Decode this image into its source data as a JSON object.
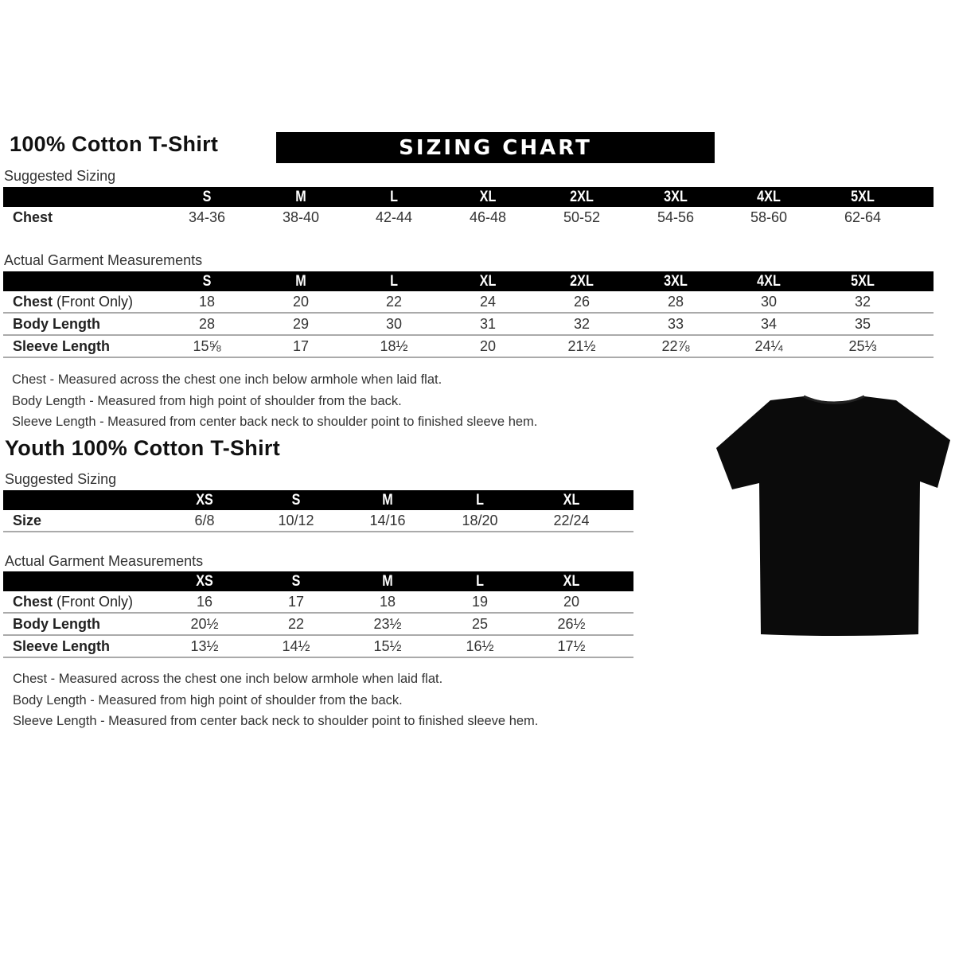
{
  "adult": {
    "title": "100% Cotton T-Shirt",
    "banner": "SIZING CHART",
    "suggested_label": "Suggested Sizing",
    "sizes": [
      "S",
      "M",
      "L",
      "XL",
      "2XL",
      "3XL",
      "4XL",
      "5XL"
    ],
    "suggested_rows": [
      {
        "label": "Chest",
        "label_light": "",
        "values": [
          "34-36",
          "38-40",
          "42-44",
          "46-48",
          "50-52",
          "54-56",
          "58-60",
          "62-64"
        ]
      }
    ],
    "actual_label": "Actual Garment Measurements",
    "actual_rows": [
      {
        "label": "Chest",
        "label_light": " (Front Only)",
        "values": [
          "18",
          "20",
          "22",
          "24",
          "26",
          "28",
          "30",
          "32"
        ]
      },
      {
        "label": "Body Length",
        "label_light": "",
        "values": [
          "28",
          "29",
          "30",
          "31",
          "32",
          "33",
          "34",
          "35"
        ]
      },
      {
        "label": "Sleeve Length",
        "label_light": "",
        "values": [
          "15⅝",
          "17",
          "18½",
          "20",
          "21½",
          "22⅞",
          "24¼",
          "25⅓"
        ]
      }
    ],
    "notes": [
      "Chest - Measured across the chest one inch below armhole when laid flat.",
      "Body Length - Measured from high point of shoulder from the back.",
      "Sleeve Length - Measured from center back neck to shoulder point to finished sleeve hem."
    ]
  },
  "youth": {
    "title": "Youth 100% Cotton T-Shirt",
    "suggested_label": "Suggested Sizing",
    "sizes": [
      "XS",
      "S",
      "M",
      "L",
      "XL"
    ],
    "suggested_rows": [
      {
        "label": "Size",
        "label_light": "",
        "values": [
          "6/8",
          "10/12",
          "14/16",
          "18/20",
          "22/24"
        ]
      }
    ],
    "actual_label": "Actual Garment Measurements",
    "actual_rows": [
      {
        "label": "Chest",
        "label_light": " (Front Only)",
        "values": [
          "16",
          "17",
          "18",
          "19",
          "20"
        ]
      },
      {
        "label": "Body Length",
        "label_light": "",
        "values": [
          "20½",
          "22",
          "23½",
          "25",
          "26½"
        ]
      },
      {
        "label": "Sleeve Length",
        "label_light": "",
        "values": [
          "13½",
          "14½",
          "15½",
          "16½",
          "17½"
        ]
      }
    ],
    "notes": [
      "Chest - Measured across the chest one inch below armhole when laid flat.",
      "Body Length - Measured from high point of shoulder from the back.",
      "Sleeve Length - Measured from center back neck to shoulder point to finished sleeve hem."
    ]
  },
  "tshirt_icon": "black-tshirt-image"
}
